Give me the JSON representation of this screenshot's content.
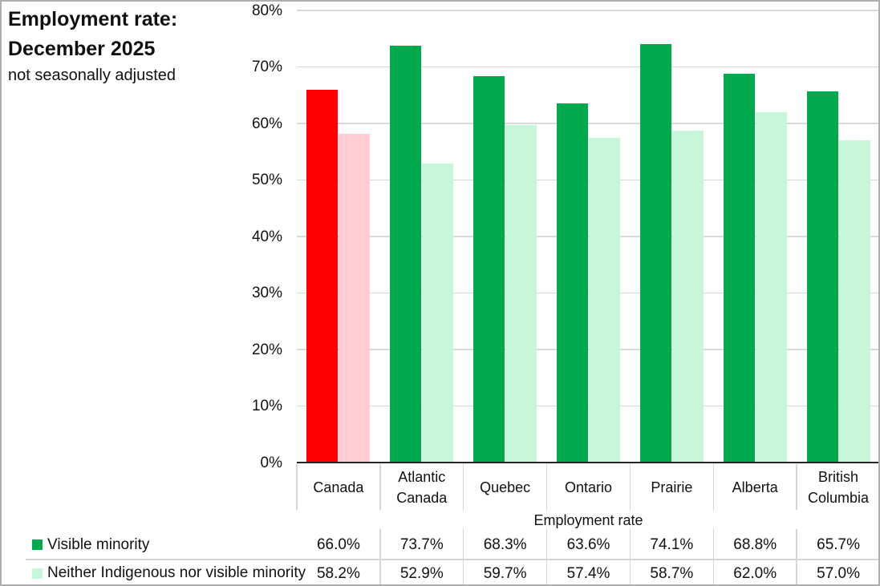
{
  "title": {
    "line1": "Employment rate:",
    "line2": "December 2025",
    "subtitle": "not seasonally adjusted"
  },
  "chart_data": {
    "type": "bar",
    "title": "Employment rate: December 2025",
    "subtitle": "not seasonally adjusted",
    "categories": [
      "Canada",
      "Atlantic Canada",
      "Quebec",
      "Ontario",
      "Prairie",
      "Alberta",
      "British Columbia"
    ],
    "series": [
      {
        "name": "Visible minority",
        "values": [
          66.0,
          73.7,
          68.3,
          63.6,
          74.1,
          68.8,
          65.7
        ],
        "display": [
          "66.0%",
          "73.7%",
          "68.3%",
          "63.6%",
          "74.1%",
          "68.8%",
          "65.7%"
        ],
        "bar_colors": [
          "#FF0000",
          "#00A84E",
          "#00A84E",
          "#00A84E",
          "#00A84E",
          "#00A84E",
          "#00A84E"
        ],
        "swatch_color": "#00A84E"
      },
      {
        "name": "Neither Indigenous nor visible minority",
        "values": [
          58.2,
          52.9,
          59.7,
          57.4,
          58.7,
          62.0,
          57.0
        ],
        "display": [
          "58.2%",
          "52.9%",
          "59.7%",
          "57.4%",
          "58.7%",
          "62.0%",
          "57.0%"
        ],
        "bar_colors": [
          "#FFCDD2",
          "#C6F7D9",
          "#C6F7D9",
          "#C6F7D9",
          "#C6F7D9",
          "#C6F7D9",
          "#C6F7D9"
        ],
        "swatch_color": "#C6F7D9"
      }
    ],
    "ylim": [
      0,
      80
    ],
    "ytick_step": 10,
    "ytick_labels": [
      "0%",
      "10%",
      "20%",
      "30%",
      "40%",
      "50%",
      "60%",
      "70%",
      "80%"
    ],
    "xlabel": "Employment rate",
    "grid": true,
    "legend_position": "bottom-table",
    "highlighted_category": "Canada"
  },
  "table": {
    "axis_label": "Employment rate"
  },
  "colors": {
    "highlight_bar": "#FF0000",
    "highlight_bar_light": "#FFCDD2",
    "series_bar": "#00A84E",
    "series_bar_light": "#C6F7D9",
    "gridline": "#d9d9d9",
    "axis_line": "#262626",
    "divider": "#d6d6d6"
  }
}
